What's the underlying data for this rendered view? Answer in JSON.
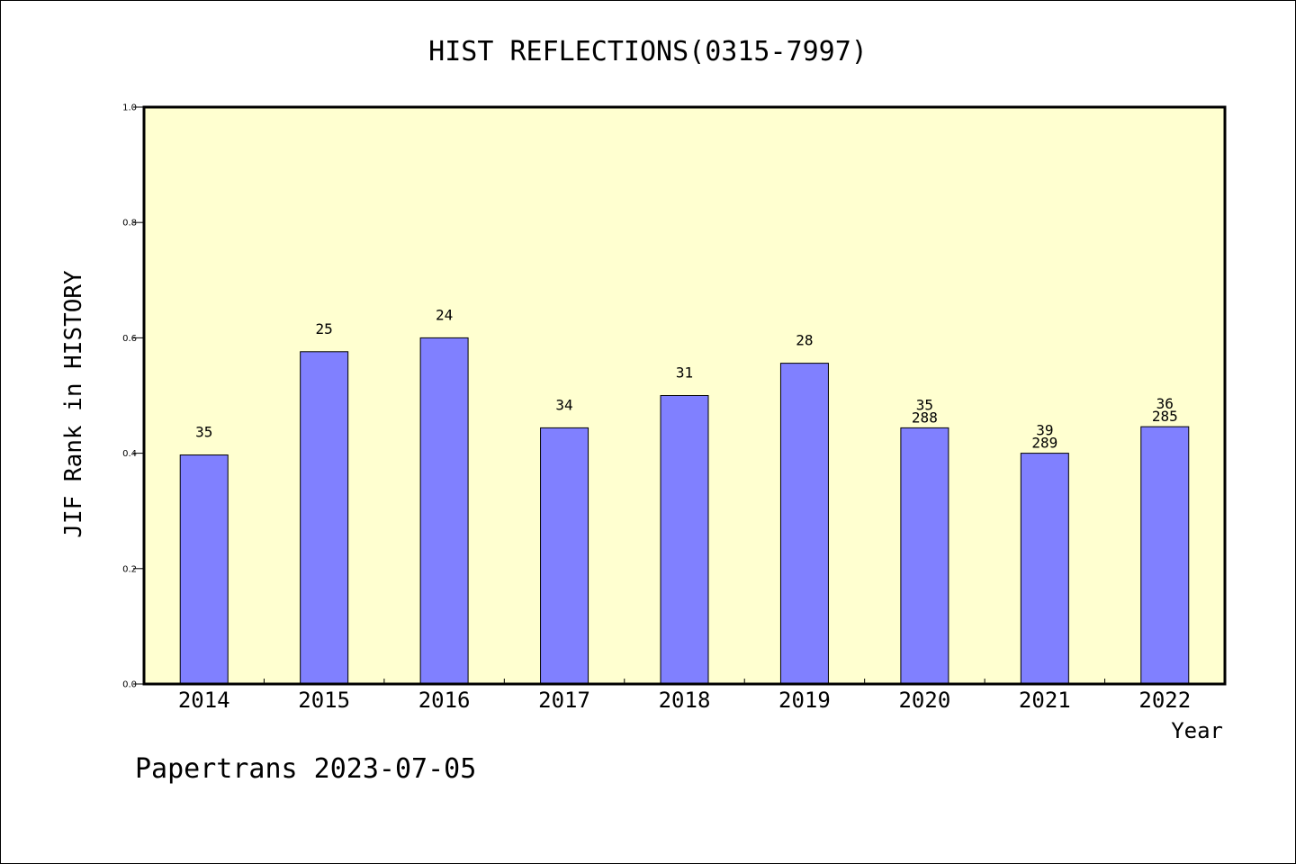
{
  "chart_data": {
    "type": "bar",
    "title": "HIST REFLECTIONS(0315-7997)",
    "xlabel": "Year",
    "ylabel": "JIF Rank in HISTORY",
    "ylim": [
      0,
      1.0
    ],
    "yticks": [
      "0.0",
      "0.2",
      "0.4",
      "0.6",
      "0.8",
      "1.0"
    ],
    "categories": [
      "2014",
      "2015",
      "2016",
      "2017",
      "2018",
      "2019",
      "2020",
      "2021",
      "2022"
    ],
    "values": [
      0.397,
      0.576,
      0.6,
      0.444,
      0.5,
      0.556,
      0.444,
      0.4,
      0.446
    ],
    "rank_labels": [
      "35",
      "25",
      "24",
      "34",
      "31",
      "28",
      "35",
      "39",
      "36"
    ],
    "total_labels": [
      "",
      "",
      "",
      "",
      "",
      "",
      "288",
      "289",
      "285"
    ],
    "grid": false,
    "bar_color": "#8080ff",
    "plot_background": "#ffffd0"
  },
  "footer": "Papertrans 2023-07-05"
}
